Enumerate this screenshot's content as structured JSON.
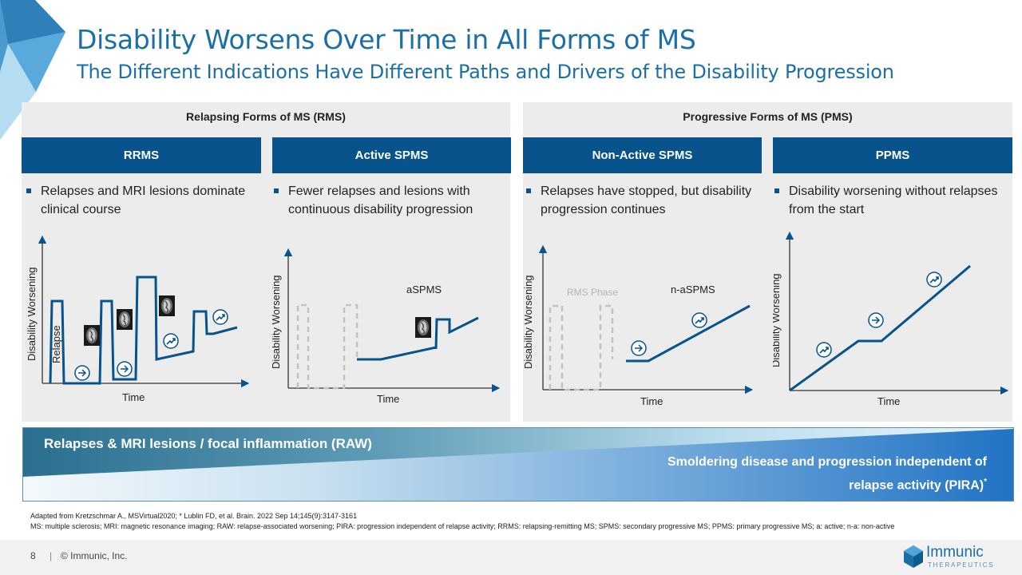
{
  "title": "Disability Worsens Over Time in All Forms of MS",
  "subtitle": "The Different Indications Have Different Paths and Drivers of the Disability Progression",
  "groups": {
    "rms": "Relapsing Forms of MS (RMS)",
    "pms": "Progressive Forms of MS (PMS)"
  },
  "columns": [
    {
      "header": "RRMS",
      "bullet": "Relapses and MRI lesions dominate clinical course"
    },
    {
      "header": "Active SPMS",
      "bullet": "Fewer relapses and lesions with continuous disability progression"
    },
    {
      "header": "Non-Active SPMS",
      "bullet": "Relapses have stopped, but disability progression continues"
    },
    {
      "header": "PPMS",
      "bullet": "Disability worsening without relapses from the start"
    }
  ],
  "charts": {
    "ylabel": "Disability Worsening",
    "xlabel": "Time",
    "relapse_label": "Relapse",
    "aspms_label": "aSPMS",
    "rms_phase_label": "RMS Phase",
    "naspms_label": "n-aSPMS"
  },
  "band": {
    "raw_label": "Relapses & MRI lesions / focal inflammation (RAW)",
    "pira_line1": "Smoldering disease and progression independent of",
    "pira_line2": "relapse activity (PIRA)",
    "pira_mark": "*"
  },
  "footnotes": {
    "line1": "Adapted from Kretzschmar A., MSVirtual2020; * Lublin FD, et al. Brain. 2022 Sep 14;145(9):3147-3161",
    "line2": "MS: multiple sclerosis; MRI: magnetic resonance imaging; RAW: relapse-associated worsening; PIRA: progression independent of relapse activity; RRMS: relapsing-remitting MS; SPMS: secondary progressive MS; PPMS: primary progressive MS; a: active; n-a: non-active"
  },
  "footer": {
    "page": "8",
    "sep": "|",
    "copyright": "© Immunic, Inc.",
    "logo_name": "Immunic",
    "logo_sub": "THERAPEUTICS"
  },
  "colors": {
    "brand_blue": "#1b6ea6",
    "header_navy": "#08538c",
    "panel_gray": "#ececec"
  }
}
